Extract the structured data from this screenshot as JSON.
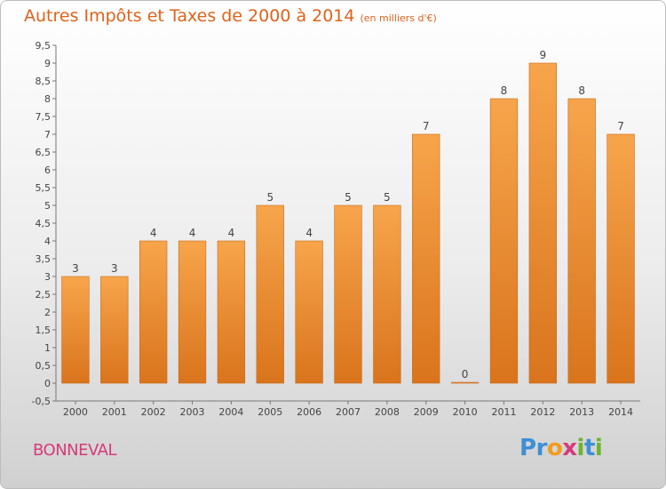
{
  "chart_data": {
    "type": "bar",
    "title": "Autres Impôts et Taxes de 2000 à 2014",
    "subtitle": "(en milliers d'€)",
    "categories": [
      "2000",
      "2001",
      "2002",
      "2003",
      "2004",
      "2005",
      "2006",
      "2007",
      "2008",
      "2009",
      "2010",
      "2011",
      "2012",
      "2013",
      "2014"
    ],
    "values": [
      3,
      3,
      4,
      4,
      4,
      5,
      4,
      5,
      5,
      7,
      0,
      8,
      9,
      8,
      7
    ],
    "ylim": [
      -0.5,
      9.5
    ],
    "yticks": [
      "-0,5",
      "0",
      "0,5",
      "1",
      "1,5",
      "2",
      "2,5",
      "3",
      "3,5",
      "4",
      "4,5",
      "5",
      "5,5",
      "6",
      "6,5",
      "7",
      "7,5",
      "8",
      "8,5",
      "9",
      "9,5"
    ],
    "grid": false,
    "bar_color": "#f0922e"
  },
  "location": "BONNEVAL",
  "brand": {
    "letters": [
      {
        "char": "P",
        "color": "#3d8fd6"
      },
      {
        "char": "r",
        "color": "#3d8fd6"
      },
      {
        "char": "o",
        "color": "#f29a1c"
      },
      {
        "char": "x",
        "color": "#d63b7c"
      },
      {
        "char": "i",
        "color": "#6cb52d"
      },
      {
        "char": "t",
        "color": "#3d8fd6"
      },
      {
        "char": "i",
        "color": "#6cb52d"
      }
    ]
  }
}
